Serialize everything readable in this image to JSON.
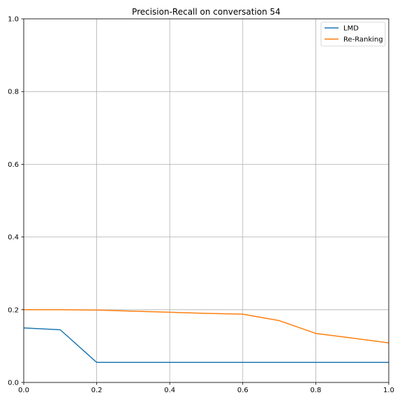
{
  "chart_data": {
    "type": "line",
    "title": "Precision-Recall on conversation 54",
    "xlabel": "",
    "ylabel": "",
    "xlim": [
      0,
      1
    ],
    "ylim": [
      0,
      1
    ],
    "xticks": [
      "0.0",
      "0.2",
      "0.4",
      "0.6",
      "0.8",
      "1.0"
    ],
    "yticks": [
      "0.0",
      "0.2",
      "0.4",
      "0.6",
      "0.8",
      "1.0"
    ],
    "grid": true,
    "legend_position": "top-right",
    "series": [
      {
        "name": "LMD",
        "color": "#1f77b4",
        "x": [
          0.0,
          0.1,
          0.2,
          0.3,
          0.4,
          0.5,
          0.6,
          0.7,
          0.8,
          0.9,
          1.0
        ],
        "y": [
          0.15,
          0.145,
          0.055,
          0.055,
          0.055,
          0.055,
          0.055,
          0.055,
          0.055,
          0.055,
          0.055
        ]
      },
      {
        "name": "Re-Ranking",
        "color": "#ff7f0e",
        "x": [
          0.0,
          0.1,
          0.2,
          0.3,
          0.4,
          0.5,
          0.6,
          0.7,
          0.8,
          0.9,
          1.0
        ],
        "y": [
          0.2,
          0.2,
          0.199,
          0.196,
          0.193,
          0.19,
          0.188,
          0.17,
          0.135,
          0.122,
          0.109
        ]
      }
    ]
  }
}
